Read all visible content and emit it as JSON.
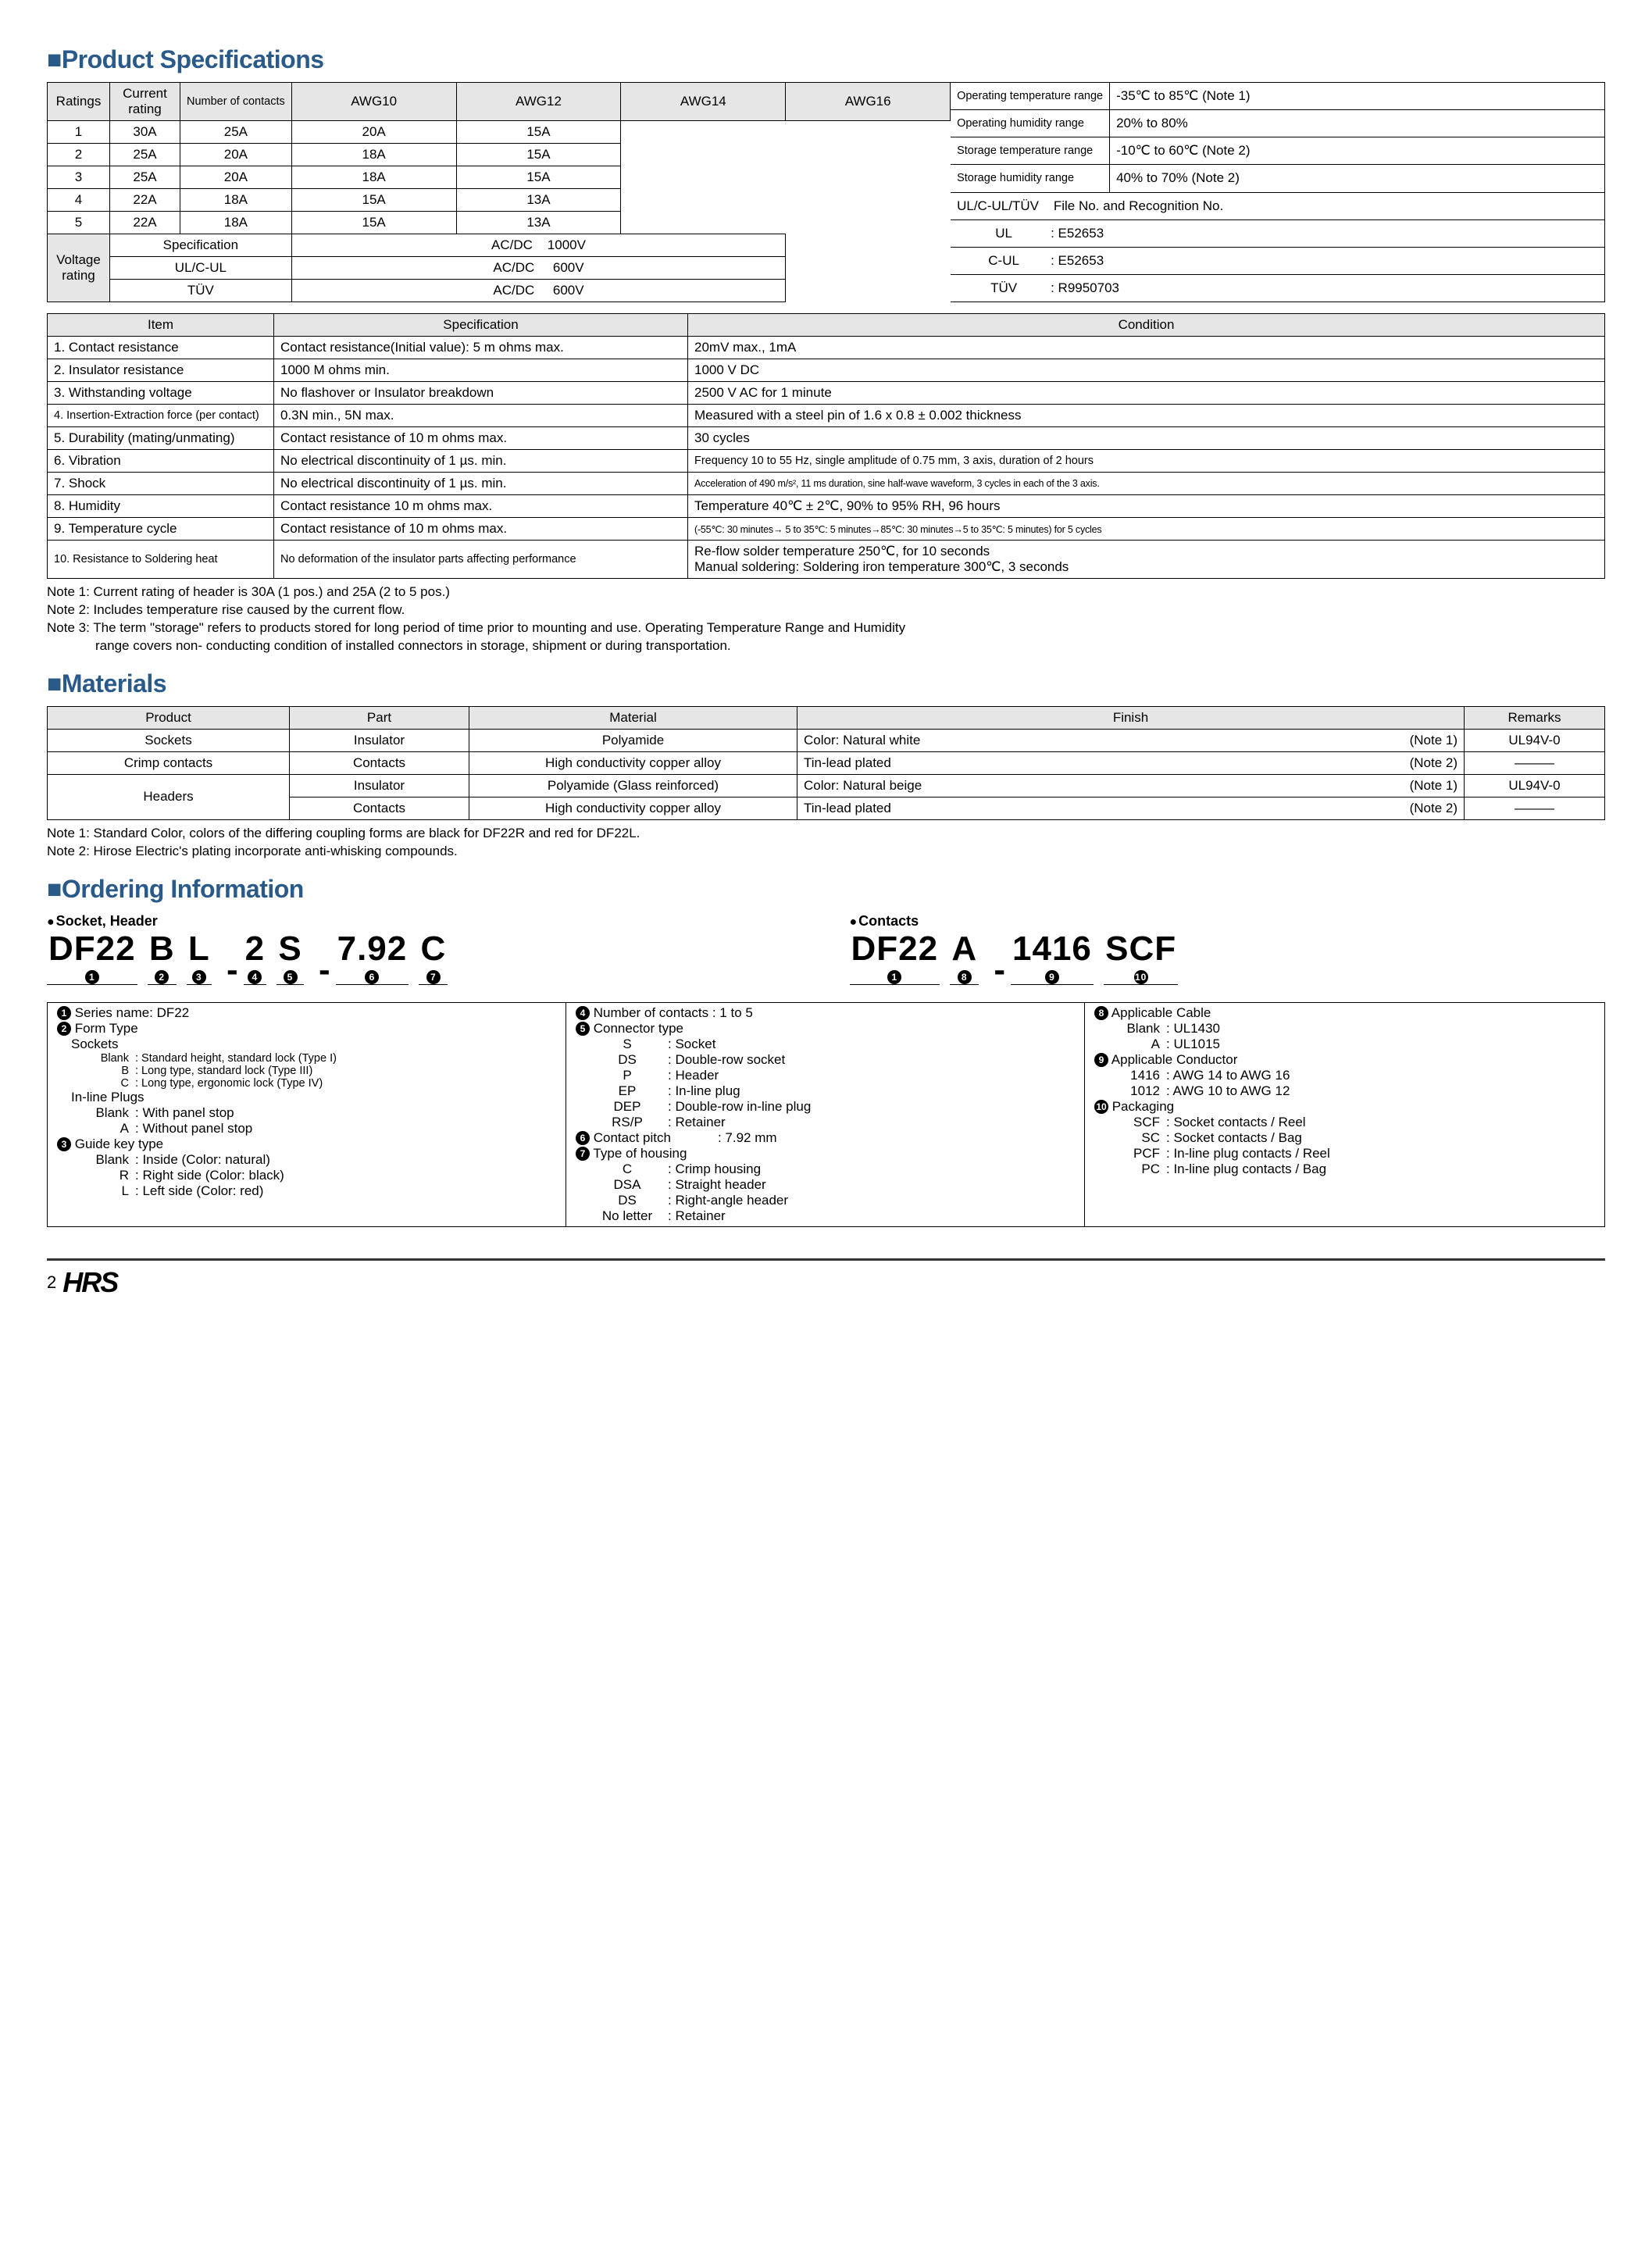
{
  "sections": {
    "spec": "■Product Specifications",
    "materials": "■Materials",
    "ordering": "■Ordering Information"
  },
  "ratings": {
    "row_label": "Ratings",
    "current_label": "Current\nrating",
    "voltage_label": "Voltage\nrating",
    "ncontacts_hdr": "Number of contacts",
    "awg_hdrs": [
      "AWG10",
      "AWG12",
      "AWG14",
      "AWG16"
    ],
    "current_rows": [
      {
        "n": "1",
        "v": [
          "30A",
          "25A",
          "20A",
          "15A"
        ]
      },
      {
        "n": "2",
        "v": [
          "25A",
          "20A",
          "18A",
          "15A"
        ]
      },
      {
        "n": "3",
        "v": [
          "25A",
          "20A",
          "18A",
          "15A"
        ]
      },
      {
        "n": "4",
        "v": [
          "22A",
          "18A",
          "15A",
          "13A"
        ]
      },
      {
        "n": "5",
        "v": [
          "22A",
          "18A",
          "15A",
          "13A"
        ]
      }
    ],
    "voltage_rows": [
      {
        "spec": "Specification",
        "v": "AC/DC    1000V"
      },
      {
        "spec": "UL/C-UL",
        "v": "AC/DC     600V"
      },
      {
        "spec": "TÜV",
        "v": "AC/DC     600V"
      }
    ],
    "env_rows": [
      {
        "k": "Operating temperature range",
        "v": "-35℃ to 85℃ (Note 1)"
      },
      {
        "k": "Operating humidity range",
        "v": "20% to 80%"
      },
      {
        "k": "Storage temperature range",
        "v": "-10℃ to 60℃ (Note 2)"
      },
      {
        "k": "Storage humidity range",
        "v": "40% to 70% (Note 2)"
      }
    ],
    "cert_hdr": "UL/C-UL/TÜV    File No. and Recognition No.",
    "cert_rows": [
      {
        "k": "UL",
        "v": ": E52653"
      },
      {
        "k": "C-UL",
        "v": ": E52653"
      },
      {
        "k": "TÜV",
        "v": ": R9950703"
      }
    ]
  },
  "spec_table": {
    "headers": [
      "Item",
      "Specification",
      "Condition"
    ],
    "rows": [
      {
        "i": "1. Contact resistance",
        "s": "Contact resistance(Initial value): 5 m ohms max.",
        "c": "20mV max., 1mA"
      },
      {
        "i": "2. Insulator resistance",
        "s": "1000 M ohms min.",
        "c": "1000 V DC"
      },
      {
        "i": "3. Withstanding voltage",
        "s": "No flashover or Insulator breakdown",
        "c": "2500 V AC for 1 minute"
      },
      {
        "i": "4. Insertion-Extraction force (per contact)",
        "s": "0.3N min., 5N max.",
        "c": "Measured with a steel pin of 1.6 x 0.8 ± 0.002 thickness",
        "small_i": true
      },
      {
        "i": "5. Durability (mating/unmating)",
        "s": "Contact resistance of 10 m ohms max.",
        "c": "30 cycles"
      },
      {
        "i": "6. Vibration",
        "s": "No electrical discontinuity of 1 µs. min.",
        "c": "Frequency 10 to 55 Hz, single amplitude of 0.75 mm, 3 axis, duration of 2 hours",
        "small_c": true
      },
      {
        "i": "7. Shock",
        "s": "No electrical discontinuity of 1 µs. min.",
        "c": "Acceleration of 490 m/s², 11 ms duration, sine half-wave waveform, 3 cycles in each of the 3 axis.",
        "xsmall_c": true
      },
      {
        "i": "8. Humidity",
        "s": "Contact resistance 10 m ohms max.",
        "c": "Temperature 40℃ ± 2℃, 90% to 95% RH, 96 hours"
      },
      {
        "i": "9. Temperature cycle",
        "s": "Contact resistance of 10 m ohms max.",
        "c": "(-55℃: 30 minutes→ 5 to 35℃: 5 minutes→85℃: 30 minutes→5 to 35℃: 5 minutes) for 5 cycles",
        "xsmall_c": true
      },
      {
        "i": "10. Resistance to Soldering heat",
        "s": "No deformation of the insulator parts affecting performance",
        "c": "Re-flow solder temperature 250℃, for 10 seconds\nManual soldering: Soldering iron temperature 300℃, 3 seconds",
        "small_i": true,
        "small_s": true
      }
    ]
  },
  "spec_notes": [
    "Note 1: Current rating of header is 30A (1 pos.) and 25A (2 to 5 pos.)",
    "Note 2: Includes temperature rise caused by the current flow.",
    "Note 3: The term \"storage\" refers to products stored for long period of time prior to mounting and use. Operating Temperature Range and Humidity range covers non- conducting condition of installed connectors in storage, shipment or during transportation."
  ],
  "materials": {
    "headers": [
      "Product",
      "Part",
      "Material",
      "Finish",
      "Remarks"
    ],
    "rows": [
      {
        "p": "Sockets",
        "part": "Insulator",
        "m": "Polyamide",
        "f": "Color: Natural white",
        "fn": "(Note 1)",
        "r": "UL94V-0"
      },
      {
        "p": "Crimp contacts",
        "part": "Contacts",
        "m": "High conductivity copper alloy",
        "f": "Tin-lead plated",
        "fn": "(Note 2)",
        "r": "———"
      },
      {
        "p": "Headers",
        "part": "Insulator",
        "m": "Polyamide (Glass reinforced)",
        "f": "Color: Natural beige",
        "fn": "(Note 1)",
        "r": "UL94V-0",
        "rs": 2
      },
      {
        "p": "",
        "part": "Contacts",
        "m": "High conductivity copper alloy",
        "f": "Tin-lead plated",
        "fn": "(Note 2)",
        "r": "———"
      }
    ]
  },
  "materials_notes": [
    "Note 1: Standard Color, colors of the differing coupling forms are black for DF22R and red for DF22L.",
    "Note 2: Hirose Electric's plating incorporate anti-whisking compounds."
  ],
  "ordering": {
    "socket_hdr": "Socket, Header",
    "contacts_hdr": "Contacts",
    "pn1": [
      "DF22",
      "B",
      "L",
      "-",
      "2",
      "S",
      "-",
      "7.92",
      "C"
    ],
    "pn1_idx": [
      "1",
      "2",
      "3",
      "",
      "4",
      "5",
      "",
      "6",
      "7"
    ],
    "pn2": [
      "DF22",
      "A",
      "-",
      "1416",
      "SCF"
    ],
    "pn2_idx": [
      "1",
      "8",
      "",
      "9",
      "10"
    ]
  },
  "ord_sections": {
    "col1": [
      {
        "n": "1",
        "t": "Series name: DF22"
      },
      {
        "n": "2",
        "t": "Form Type",
        "sub": [
          {
            "h": "Sockets"
          },
          {
            "k": "Blank",
            "v": ": Standard height, standard lock (Type I)",
            "sm": true
          },
          {
            "k": "B",
            "v": ": Long type, standard lock (Type III)",
            "sm": true
          },
          {
            "k": "C",
            "v": ": Long type, ergonomic lock (Type IV)",
            "sm": true
          },
          {
            "h": "In-line Plugs"
          },
          {
            "k": "Blank",
            "v": ": With panel stop"
          },
          {
            "k": "A",
            "v": ": Without panel stop"
          }
        ]
      },
      {
        "n": "3",
        "t": "Guide key type",
        "sub": [
          {
            "k": "Blank",
            "v": ": Inside (Color: natural)"
          },
          {
            "k": "R",
            "v": ": Right side (Color: black)"
          },
          {
            "k": "L",
            "v": ": Left side (Color: red)"
          }
        ]
      }
    ],
    "col2": [
      {
        "n": "4",
        "t": "Number of contacts : 1 to 5"
      },
      {
        "n": "5",
        "t": "Connector type",
        "sub": [
          {
            "k": "S",
            "v": ": Socket"
          },
          {
            "k": "DS",
            "v": ": Double-row socket"
          },
          {
            "k": "P",
            "v": ": Header"
          },
          {
            "k": "EP",
            "v": ": In-line plug"
          },
          {
            "k": "DEP",
            "v": ": Double-row in-line plug"
          },
          {
            "k": "RS/P",
            "v": ": Retainer"
          }
        ]
      },
      {
        "n": "6",
        "t": "Contact pitch",
        "inline": ": 7.92 mm"
      },
      {
        "n": "7",
        "t": "Type of housing",
        "sub": [
          {
            "k": "C",
            "v": ": Crimp housing"
          },
          {
            "k": "DSA",
            "v": ": Straight header"
          },
          {
            "k": "DS",
            "v": ": Right-angle header"
          },
          {
            "k": "No letter",
            "v": ": Retainer"
          }
        ]
      }
    ],
    "col3": [
      {
        "n": "8",
        "t": "Applicable Cable",
        "sub": [
          {
            "k": "Blank",
            "v": ": UL1430"
          },
          {
            "k": "A",
            "v": ": UL1015"
          }
        ]
      },
      {
        "n": "9",
        "t": "Applicable Conductor",
        "sub": [
          {
            "k": "1416",
            "v": ": AWG 14 to AWG 16"
          },
          {
            "k": "1012",
            "v": ": AWG 10 to AWG 12"
          }
        ]
      },
      {
        "n": "10",
        "t": "Packaging",
        "sub": [
          {
            "k": "SCF",
            "v": ": Socket contacts / Reel"
          },
          {
            "k": "SC",
            "v": ": Socket contacts / Bag"
          },
          {
            "k": "PCF",
            "v": ": In-line plug contacts / Reel"
          },
          {
            "k": "PC",
            "v": ": In-line plug contacts / Bag"
          }
        ]
      }
    ]
  },
  "footer": {
    "page": "2",
    "logo": "HRS"
  }
}
